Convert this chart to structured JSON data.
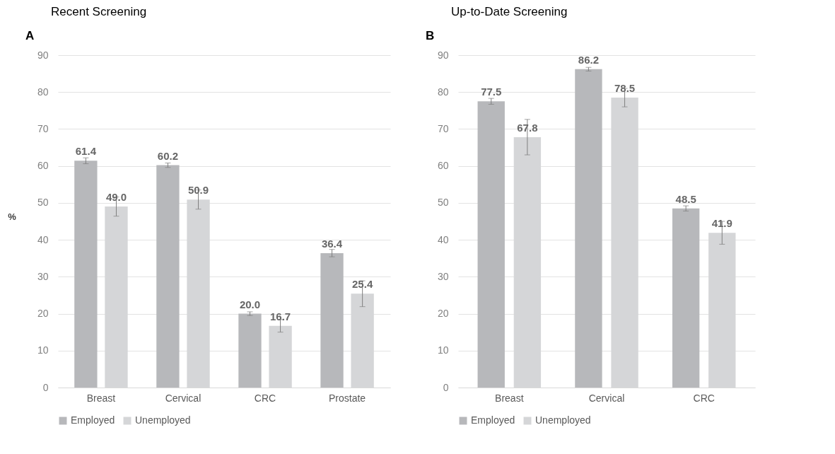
{
  "chart_data": [
    {
      "type": "bar",
      "title": "Recent Screening",
      "annotations": [
        "A"
      ],
      "ylabel": "%",
      "categories": [
        "Breast",
        "Cervical",
        "CRC",
        "Prostate"
      ],
      "series": [
        {
          "name": "Employed",
          "color": "#b7b8bb",
          "values": [
            61.4,
            60.2,
            20.0,
            36.4
          ],
          "errors": [
            0.8,
            0.6,
            0.5,
            1.0
          ],
          "value_labels": [
            "61.4",
            "60.2",
            "20.0",
            "36.4"
          ]
        },
        {
          "name": "Unemployed",
          "color": "#d5d6d8",
          "values": [
            49.0,
            50.9,
            16.7,
            25.4
          ],
          "errors": [
            2.6,
            2.6,
            1.7,
            3.5
          ],
          "value_labels": [
            "49.0",
            "50.9",
            "16.7",
            "25.4"
          ]
        }
      ],
      "ylim": [
        0,
        90
      ],
      "yticks": [
        0,
        10,
        20,
        30,
        40,
        50,
        60,
        70,
        80,
        90
      ],
      "grid": "y",
      "legend": "bottom"
    },
    {
      "type": "bar",
      "title": "Up-to-Date Screening",
      "annotations": [
        "B"
      ],
      "categories": [
        "Breast",
        "Cervical",
        "CRC"
      ],
      "series": [
        {
          "name": "Employed",
          "color": "#b7b8bb",
          "values": [
            77.5,
            86.2,
            48.5
          ],
          "errors": [
            0.8,
            0.5,
            0.7
          ],
          "value_labels": [
            "77.5",
            "86.2",
            "48.5"
          ]
        },
        {
          "name": "Unemployed",
          "color": "#d5d6d8",
          "values": [
            67.8,
            78.5,
            41.9
          ],
          "errors": [
            4.8,
            2.5,
            3.1
          ],
          "value_labels": [
            "67.8",
            "78.5",
            "41.9"
          ]
        }
      ],
      "ylim": [
        0,
        90
      ],
      "yticks": [
        0,
        10,
        20,
        30,
        40,
        50,
        60,
        70,
        80,
        90
      ],
      "grid": "y",
      "legend": "bottom"
    }
  ]
}
